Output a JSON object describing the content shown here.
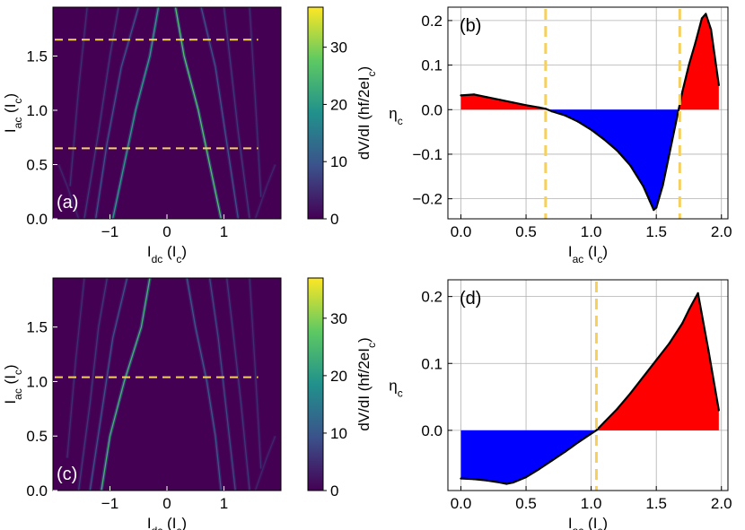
{
  "colors": {
    "positive": "#ff0000",
    "negative": "#0000ff",
    "marker_line": "#f5d05e",
    "map_background": "#440154",
    "grid": "#b0b0b0"
  },
  "colorbar": {
    "label": "dV/dI (hf/2eI",
    "label_sub": "c",
    "label_end": ")",
    "ticks": [
      "0",
      "10",
      "20",
      "30"
    ],
    "tick_values": [
      0,
      10,
      20,
      30
    ],
    "range": [
      0,
      37
    ],
    "colors": [
      "#440154",
      "#3b528b",
      "#21918c",
      "#5ec962",
      "#fde725"
    ]
  },
  "chart_data": [
    {
      "id": "a",
      "type": "heatmap",
      "panel_label": "(a)",
      "xlabel": "I",
      "xlabel_sub": "dc",
      "xlabel_unit": " (I",
      "xlabel_unit_sub": "c",
      "xlabel_end": ")",
      "ylabel": "I",
      "ylabel_sub": "ac",
      "ylabel_unit": " (I",
      "ylabel_unit_sub": "c",
      "ylabel_end": ")",
      "xlim": [
        -2.0,
        2.0
      ],
      "ylim": [
        0.0,
        1.95
      ],
      "xticks": [
        -1,
        0,
        1
      ],
      "xtick_labels": [
        "−1",
        "0",
        "1"
      ],
      "yticks": [
        0.0,
        0.5,
        1.0,
        1.5
      ],
      "ytick_labels": [
        "0.0",
        "0.5",
        "1.0",
        "1.5"
      ],
      "marker_lines": [
        0.65,
        1.65
      ],
      "marker_extent": [
        -2.0,
        1.6
      ],
      "curves": [
        {
          "x": [
            -0.95,
            -0.75,
            -0.55,
            -0.3,
            -0.15
          ],
          "y": [
            0.0,
            0.5,
            1.0,
            1.5,
            1.95
          ],
          "level": 20
        },
        {
          "x": [
            0.95,
            0.75,
            0.55,
            0.3,
            0.15
          ],
          "y": [
            0.0,
            0.5,
            1.0,
            1.5,
            1.95
          ],
          "level": 26
        },
        {
          "x": [
            -1.25,
            -1.05,
            -0.8,
            -0.5
          ],
          "y": [
            0.0,
            0.7,
            1.4,
            1.95
          ],
          "level": 9
        },
        {
          "x": [
            1.25,
            1.05,
            0.85,
            0.6
          ],
          "y": [
            0.0,
            0.7,
            1.4,
            1.95
          ],
          "level": 9
        },
        {
          "x": [
            -1.45,
            -1.2,
            -1.0,
            -0.85
          ],
          "y": [
            0.0,
            0.8,
            1.5,
            1.95
          ],
          "level": 6
        },
        {
          "x": [
            1.45,
            1.25,
            1.1,
            1.0
          ],
          "y": [
            0.0,
            0.8,
            1.5,
            1.95
          ],
          "level": 6
        },
        {
          "x": [
            -1.7,
            -1.55,
            -1.4
          ],
          "y": [
            0.3,
            1.2,
            1.95
          ],
          "level": 5
        },
        {
          "x": [
            1.65,
            1.55,
            1.45
          ],
          "y": [
            0.2,
            1.1,
            1.95
          ],
          "level": 5
        },
        {
          "x": [
            -1.55,
            -1.75,
            -1.9
          ],
          "y": [
            0.0,
            0.3,
            0.5
          ],
          "level": 4
        },
        {
          "x": [
            1.55,
            1.75,
            1.9
          ],
          "y": [
            0.0,
            0.3,
            0.5
          ],
          "level": 4
        }
      ]
    },
    {
      "id": "b",
      "type": "area",
      "panel_label": "(b)",
      "xlabel": "I",
      "xlabel_sub": "ac",
      "xlabel_unit": " (I",
      "xlabel_unit_sub": "c",
      "xlabel_end": ")",
      "ylabel": "η",
      "ylabel_sub": "c",
      "xlim": [
        -0.1,
        2.05
      ],
      "ylim": [
        -0.245,
        0.23
      ],
      "xticks": [
        0.0,
        0.5,
        1.0,
        1.5,
        2.0
      ],
      "xtick_labels": [
        "0.0",
        "0.5",
        "1.0",
        "1.5",
        "2.0"
      ],
      "yticks": [
        -0.2,
        -0.1,
        0.0,
        0.1,
        0.2
      ],
      "ytick_labels": [
        "−0.2",
        "−0.1",
        "0.0",
        "0.1",
        "0.2"
      ],
      "vlines": [
        0.65,
        1.68
      ],
      "x": [
        0.0,
        0.1,
        0.2,
        0.3,
        0.4,
        0.5,
        0.6,
        0.65,
        0.7,
        0.8,
        0.9,
        1.0,
        1.1,
        1.2,
        1.3,
        1.4,
        1.45,
        1.48,
        1.5,
        1.55,
        1.6,
        1.65,
        1.7,
        1.75,
        1.8,
        1.85,
        1.88,
        1.92,
        1.98
      ],
      "y": [
        0.032,
        0.034,
        0.028,
        0.022,
        0.016,
        0.01,
        0.005,
        0.002,
        -0.004,
        -0.013,
        -0.027,
        -0.045,
        -0.067,
        -0.092,
        -0.125,
        -0.172,
        -0.205,
        -0.225,
        -0.22,
        -0.17,
        -0.1,
        -0.03,
        0.04,
        0.1,
        0.15,
        0.205,
        0.215,
        0.18,
        0.055
      ]
    },
    {
      "id": "c",
      "type": "heatmap",
      "panel_label": "(c)",
      "xlabel": "I",
      "xlabel_sub": "dc",
      "xlabel_unit": " (I",
      "xlabel_unit_sub": "c",
      "xlabel_end": ")",
      "ylabel": "I",
      "ylabel_sub": "ac",
      "ylabel_unit": " (I",
      "ylabel_unit_sub": "c",
      "ylabel_end": ")",
      "xlim": [
        -2.0,
        2.0
      ],
      "ylim": [
        0.0,
        1.95
      ],
      "xticks": [
        -1,
        0,
        1
      ],
      "xtick_labels": [
        "−1",
        "0",
        "1"
      ],
      "yticks": [
        0.0,
        0.5,
        1.0,
        1.5
      ],
      "ytick_labels": [
        "0.0",
        "0.5",
        "1.0",
        "1.5"
      ],
      "marker_lines": [
        1.04
      ],
      "marker_extent": [
        -2.0,
        1.6
      ],
      "curves": [
        {
          "x": [
            -1.15,
            -1.0,
            -0.75,
            -0.45,
            -0.3
          ],
          "y": [
            0.0,
            0.5,
            1.0,
            1.5,
            1.95
          ],
          "level": 24
        },
        {
          "x": [
            0.95,
            0.85,
            0.7,
            0.5,
            0.35
          ],
          "y": [
            0.0,
            0.5,
            1.0,
            1.5,
            1.95
          ],
          "level": 10
        },
        {
          "x": [
            -1.35,
            -1.15,
            -0.95,
            -0.7
          ],
          "y": [
            0.0,
            0.7,
            1.4,
            1.95
          ],
          "level": 9
        },
        {
          "x": [
            1.2,
            1.05,
            0.9,
            0.75
          ],
          "y": [
            0.0,
            0.7,
            1.4,
            1.95
          ],
          "level": 8
        },
        {
          "x": [
            -1.55,
            -1.35,
            -1.2,
            -1.05
          ],
          "y": [
            0.0,
            0.8,
            1.5,
            1.95
          ],
          "level": 6
        },
        {
          "x": [
            1.45,
            1.3,
            1.15,
            1.05
          ],
          "y": [
            0.0,
            0.8,
            1.5,
            1.95
          ],
          "level": 6
        },
        {
          "x": [
            -1.75,
            -1.6,
            -1.45
          ],
          "y": [
            0.3,
            1.2,
            1.95
          ],
          "level": 5
        },
        {
          "x": [
            1.65,
            1.55,
            1.45
          ],
          "y": [
            0.2,
            1.1,
            1.95
          ],
          "level": 5
        },
        {
          "x": [
            1.55,
            1.75,
            1.9
          ],
          "y": [
            0.0,
            0.3,
            0.5
          ],
          "level": 4
        }
      ]
    },
    {
      "id": "d",
      "type": "area",
      "panel_label": "(d)",
      "xlabel": "I",
      "xlabel_sub": "ac",
      "xlabel_unit": " (I",
      "xlabel_unit_sub": "c",
      "xlabel_end": ")",
      "ylabel": "η",
      "ylabel_sub": "c",
      "xlim": [
        -0.1,
        2.05
      ],
      "ylim": [
        -0.09,
        0.225
      ],
      "xticks": [
        0.0,
        0.5,
        1.0,
        1.5,
        2.0
      ],
      "xtick_labels": [
        "0.0",
        "0.5",
        "1.0",
        "1.5",
        "2.0"
      ],
      "yticks": [
        0.0,
        0.1,
        0.2
      ],
      "ytick_labels": [
        "0.0",
        "0.1",
        "0.2"
      ],
      "vlines": [
        1.04
      ],
      "x": [
        0.0,
        0.1,
        0.2,
        0.3,
        0.35,
        0.4,
        0.5,
        0.6,
        0.7,
        0.8,
        0.9,
        1.0,
        1.04,
        1.1,
        1.2,
        1.3,
        1.4,
        1.5,
        1.6,
        1.7,
        1.75,
        1.8,
        1.82,
        1.9,
        1.98
      ],
      "y": [
        -0.072,
        -0.073,
        -0.075,
        -0.078,
        -0.08,
        -0.078,
        -0.07,
        -0.058,
        -0.045,
        -0.032,
        -0.018,
        -0.005,
        0.0,
        0.012,
        0.032,
        0.055,
        0.08,
        0.105,
        0.13,
        0.16,
        0.18,
        0.198,
        0.205,
        0.12,
        0.03
      ]
    }
  ]
}
